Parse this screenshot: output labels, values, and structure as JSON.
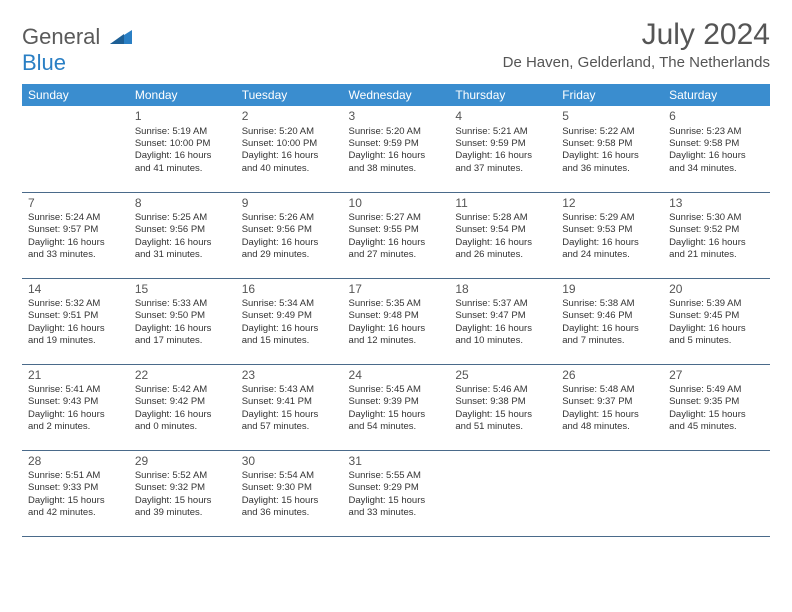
{
  "logo": {
    "text1": "General",
    "text2": "Blue"
  },
  "title": "July 2024",
  "location": "De Haven, Gelderland, The Netherlands",
  "colors": {
    "header_bg": "#3a8dcf",
    "header_text": "#ffffff",
    "logo_gray": "#5a5a5a",
    "logo_blue": "#2a7fc4",
    "title_color": "#555555",
    "cell_text": "#333333",
    "rule": "#4a6a8a",
    "page_bg": "#ffffff"
  },
  "fonts": {
    "title_size": 30,
    "location_size": 15,
    "dayhead_size": 12,
    "cell_size": 9.5,
    "daynum_size": 12
  },
  "dayheads": [
    "Sunday",
    "Monday",
    "Tuesday",
    "Wednesday",
    "Thursday",
    "Friday",
    "Saturday"
  ],
  "weeks": [
    [
      null,
      {
        "n": "1",
        "sr": "Sunrise: 5:19 AM",
        "ss": "Sunset: 10:00 PM",
        "dl": "Daylight: 16 hours and 41 minutes."
      },
      {
        "n": "2",
        "sr": "Sunrise: 5:20 AM",
        "ss": "Sunset: 10:00 PM",
        "dl": "Daylight: 16 hours and 40 minutes."
      },
      {
        "n": "3",
        "sr": "Sunrise: 5:20 AM",
        "ss": "Sunset: 9:59 PM",
        "dl": "Daylight: 16 hours and 38 minutes."
      },
      {
        "n": "4",
        "sr": "Sunrise: 5:21 AM",
        "ss": "Sunset: 9:59 PM",
        "dl": "Daylight: 16 hours and 37 minutes."
      },
      {
        "n": "5",
        "sr": "Sunrise: 5:22 AM",
        "ss": "Sunset: 9:58 PM",
        "dl": "Daylight: 16 hours and 36 minutes."
      },
      {
        "n": "6",
        "sr": "Sunrise: 5:23 AM",
        "ss": "Sunset: 9:58 PM",
        "dl": "Daylight: 16 hours and 34 minutes."
      }
    ],
    [
      {
        "n": "7",
        "sr": "Sunrise: 5:24 AM",
        "ss": "Sunset: 9:57 PM",
        "dl": "Daylight: 16 hours and 33 minutes."
      },
      {
        "n": "8",
        "sr": "Sunrise: 5:25 AM",
        "ss": "Sunset: 9:56 PM",
        "dl": "Daylight: 16 hours and 31 minutes."
      },
      {
        "n": "9",
        "sr": "Sunrise: 5:26 AM",
        "ss": "Sunset: 9:56 PM",
        "dl": "Daylight: 16 hours and 29 minutes."
      },
      {
        "n": "10",
        "sr": "Sunrise: 5:27 AM",
        "ss": "Sunset: 9:55 PM",
        "dl": "Daylight: 16 hours and 27 minutes."
      },
      {
        "n": "11",
        "sr": "Sunrise: 5:28 AM",
        "ss": "Sunset: 9:54 PM",
        "dl": "Daylight: 16 hours and 26 minutes."
      },
      {
        "n": "12",
        "sr": "Sunrise: 5:29 AM",
        "ss": "Sunset: 9:53 PM",
        "dl": "Daylight: 16 hours and 24 minutes."
      },
      {
        "n": "13",
        "sr": "Sunrise: 5:30 AM",
        "ss": "Sunset: 9:52 PM",
        "dl": "Daylight: 16 hours and 21 minutes."
      }
    ],
    [
      {
        "n": "14",
        "sr": "Sunrise: 5:32 AM",
        "ss": "Sunset: 9:51 PM",
        "dl": "Daylight: 16 hours and 19 minutes."
      },
      {
        "n": "15",
        "sr": "Sunrise: 5:33 AM",
        "ss": "Sunset: 9:50 PM",
        "dl": "Daylight: 16 hours and 17 minutes."
      },
      {
        "n": "16",
        "sr": "Sunrise: 5:34 AM",
        "ss": "Sunset: 9:49 PM",
        "dl": "Daylight: 16 hours and 15 minutes."
      },
      {
        "n": "17",
        "sr": "Sunrise: 5:35 AM",
        "ss": "Sunset: 9:48 PM",
        "dl": "Daylight: 16 hours and 12 minutes."
      },
      {
        "n": "18",
        "sr": "Sunrise: 5:37 AM",
        "ss": "Sunset: 9:47 PM",
        "dl": "Daylight: 16 hours and 10 minutes."
      },
      {
        "n": "19",
        "sr": "Sunrise: 5:38 AM",
        "ss": "Sunset: 9:46 PM",
        "dl": "Daylight: 16 hours and 7 minutes."
      },
      {
        "n": "20",
        "sr": "Sunrise: 5:39 AM",
        "ss": "Sunset: 9:45 PM",
        "dl": "Daylight: 16 hours and 5 minutes."
      }
    ],
    [
      {
        "n": "21",
        "sr": "Sunrise: 5:41 AM",
        "ss": "Sunset: 9:43 PM",
        "dl": "Daylight: 16 hours and 2 minutes."
      },
      {
        "n": "22",
        "sr": "Sunrise: 5:42 AM",
        "ss": "Sunset: 9:42 PM",
        "dl": "Daylight: 16 hours and 0 minutes."
      },
      {
        "n": "23",
        "sr": "Sunrise: 5:43 AM",
        "ss": "Sunset: 9:41 PM",
        "dl": "Daylight: 15 hours and 57 minutes."
      },
      {
        "n": "24",
        "sr": "Sunrise: 5:45 AM",
        "ss": "Sunset: 9:39 PM",
        "dl": "Daylight: 15 hours and 54 minutes."
      },
      {
        "n": "25",
        "sr": "Sunrise: 5:46 AM",
        "ss": "Sunset: 9:38 PM",
        "dl": "Daylight: 15 hours and 51 minutes."
      },
      {
        "n": "26",
        "sr": "Sunrise: 5:48 AM",
        "ss": "Sunset: 9:37 PM",
        "dl": "Daylight: 15 hours and 48 minutes."
      },
      {
        "n": "27",
        "sr": "Sunrise: 5:49 AM",
        "ss": "Sunset: 9:35 PM",
        "dl": "Daylight: 15 hours and 45 minutes."
      }
    ],
    [
      {
        "n": "28",
        "sr": "Sunrise: 5:51 AM",
        "ss": "Sunset: 9:33 PM",
        "dl": "Daylight: 15 hours and 42 minutes."
      },
      {
        "n": "29",
        "sr": "Sunrise: 5:52 AM",
        "ss": "Sunset: 9:32 PM",
        "dl": "Daylight: 15 hours and 39 minutes."
      },
      {
        "n": "30",
        "sr": "Sunrise: 5:54 AM",
        "ss": "Sunset: 9:30 PM",
        "dl": "Daylight: 15 hours and 36 minutes."
      },
      {
        "n": "31",
        "sr": "Sunrise: 5:55 AM",
        "ss": "Sunset: 9:29 PM",
        "dl": "Daylight: 15 hours and 33 minutes."
      },
      null,
      null,
      null
    ]
  ]
}
